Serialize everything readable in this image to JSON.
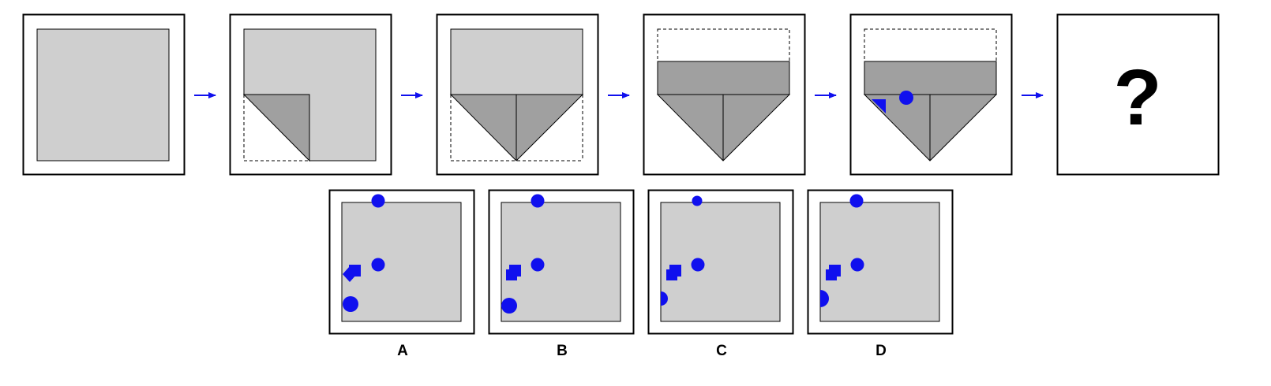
{
  "puzzle": {
    "answer_placeholder": "?",
    "option_labels": [
      "A",
      "B",
      "C",
      "D"
    ]
  },
  "colors": {
    "paper": "#cfcfcf",
    "fold": "#a0a0a0",
    "marker": "#1010ee",
    "arrow": "#1010ee",
    "frame": "#000000"
  },
  "steps": [
    {
      "name": "unfolded-square"
    },
    {
      "name": "corner-folded"
    },
    {
      "name": "both-corners-folded"
    },
    {
      "name": "top-strip-folded"
    },
    {
      "name": "punched-holes"
    }
  ],
  "options": [
    {
      "label": "A",
      "markers": [
        "top-edge-circle",
        "center-circle",
        "square",
        "diamond",
        "bottom-left-circle"
      ]
    },
    {
      "label": "B",
      "markers": [
        "top-edge-circle",
        "center-circle",
        "square",
        "square",
        "bottom-left-circle"
      ]
    },
    {
      "label": "C",
      "markers": [
        "top-edge-circle",
        "center-circle",
        "square",
        "square",
        "left-edge-circle"
      ]
    },
    {
      "label": "D",
      "markers": [
        "top-edge-circle",
        "center-circle",
        "square",
        "square",
        "left-edge-circle"
      ]
    }
  ]
}
